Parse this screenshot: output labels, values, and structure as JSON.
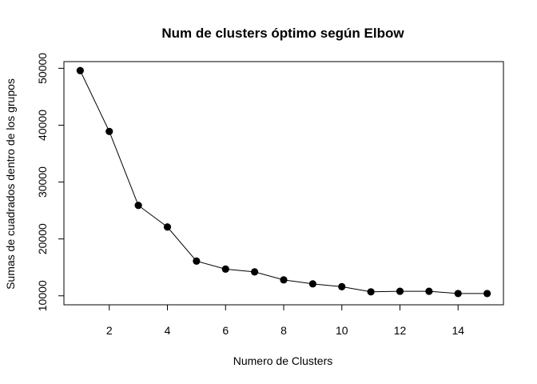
{
  "chart_data": {
    "type": "line",
    "title": "Num de clusters óptimo según Elbow",
    "xlabel": "Numero de Clusters",
    "ylabel": "Sumas de cuadrados dentro de los grupos",
    "x": [
      1,
      2,
      3,
      4,
      5,
      6,
      7,
      8,
      9,
      10,
      11,
      12,
      13,
      14,
      15
    ],
    "series": [
      {
        "values": [
          49600,
          38900,
          25900,
          22100,
          16100,
          14700,
          14200,
          12800,
          12100,
          11600,
          10700,
          10800,
          10800,
          10400,
          10400
        ]
      }
    ],
    "xlim": [
      0.44,
      15.56
    ],
    "ylim": [
      8420,
      51180
    ],
    "xticks": [
      2,
      4,
      6,
      8,
      10,
      12,
      14
    ],
    "xtick_labels": [
      "2",
      "4",
      "6",
      "8",
      "10",
      "12",
      "14"
    ],
    "yticks": [
      10000,
      20000,
      30000,
      40000,
      50000
    ],
    "ytick_labels": [
      "10000",
      "20000",
      "30000",
      "40000",
      "50000"
    ],
    "grid": false,
    "legend": "none",
    "markers": "filled-circle",
    "color": "#000000"
  }
}
